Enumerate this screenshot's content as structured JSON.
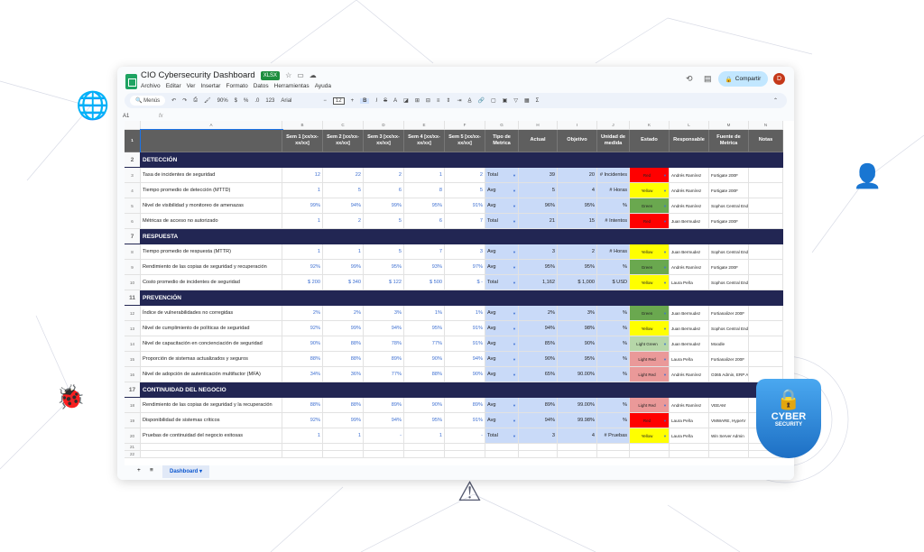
{
  "title": "CIO Cybersecurity Dashboard",
  "badge": "XLSX",
  "menu": [
    "Archivo",
    "Editar",
    "Ver",
    "Insertar",
    "Formato",
    "Datos",
    "Herramientas",
    "Ayuda"
  ],
  "share_label": "Compartir",
  "avatar": "D",
  "toolbar": {
    "search": "Menús",
    "zoom": "90%",
    "font": "Arial",
    "size": "12",
    "items": [
      "$",
      "%",
      ".0",
      "123"
    ]
  },
  "cell_ref": "A1",
  "fx": "fx",
  "columns": [
    "A",
    "B",
    "C",
    "D",
    "E",
    "F",
    "G",
    "H",
    "I",
    "J",
    "K",
    "L",
    "M",
    "N"
  ],
  "headers": [
    "",
    "Sem 1 [xx/xx-xx/xx]",
    "Sem 2 [xx/xx-xx/xx]",
    "Sem 3 [xx/xx-xx/xx]",
    "Sem 4 [xx/xx-xx/xx]",
    "Sem 5 [xx/xx-xx/xx]",
    "Tipo de Metrica",
    "Actual",
    "Objetivo",
    "Unidad de medida",
    "Estado",
    "Responsable",
    "Fuente de Metrica",
    "Notas"
  ],
  "rows": [
    {
      "n": 2,
      "section": "DETECCIÓN"
    },
    {
      "n": 3,
      "metric": "Tasa de incidentes de seguridad",
      "w": [
        "12",
        "22",
        "2",
        "1",
        "2"
      ],
      "tipo": "Total",
      "actual": "39",
      "obj": "20",
      "unit": "# Incidentes",
      "estado": "Red",
      "resp": "Andrés Ramírez",
      "fuente": "Fortigate 200F"
    },
    {
      "n": 4,
      "metric": "Tiempo promedio de detección (MTTD)",
      "w": [
        "1",
        "5",
        "6",
        "8",
        "5"
      ],
      "tipo": "Avg",
      "actual": "5",
      "obj": "4",
      "unit": "# Horas",
      "estado": "Yellow",
      "resp": "Andrés Ramírez",
      "fuente": "Fortigate 200F"
    },
    {
      "n": 5,
      "metric": "Nivel de visibilidad y monitoreo de amenazas",
      "w": [
        "99%",
        "94%",
        "99%",
        "95%",
        "91%"
      ],
      "tipo": "Avg",
      "actual": "96%",
      "obj": "95%",
      "unit": "%",
      "estado": "Green",
      "resp": "Andrés Ramírez",
      "fuente": "Sophos Central Endpoint"
    },
    {
      "n": 6,
      "metric": "Métricas de acceso no autorizado",
      "w": [
        "1",
        "2",
        "5",
        "6",
        "7"
      ],
      "tipo": "Total",
      "actual": "21",
      "obj": "15",
      "unit": "# Intentos",
      "estado": "Red",
      "resp": "Juan Bermudez",
      "fuente": "Fortigate 200F"
    },
    {
      "n": 7,
      "section": "RESPUESTA"
    },
    {
      "n": 8,
      "metric": "Tiempo promedio de respuesta (MTTR)",
      "w": [
        "1",
        "1",
        "5",
        "7",
        "3"
      ],
      "tipo": "Avg",
      "actual": "3",
      "obj": "2",
      "unit": "# Horas",
      "estado": "Yellow",
      "resp": "Juan Bermudez",
      "fuente": "Sophos Central Endpoint"
    },
    {
      "n": 9,
      "metric": "Rendimiento de las copias de seguridad y recuperación",
      "w": [
        "92%",
        "99%",
        "95%",
        "93%",
        "97%"
      ],
      "tipo": "Avg",
      "actual": "95%",
      "obj": "95%",
      "unit": "%",
      "estado": "Green",
      "resp": "Andrés Ramírez",
      "fuente": "Fortigate 200F"
    },
    {
      "n": 10,
      "metric": "Costo promedio de incidentes de seguridad",
      "w": [
        "$ 200",
        "$ 340",
        "$ 122",
        "$ 500",
        "$ -"
      ],
      "tipo": "Total",
      "actual": "1,162",
      "obj": "$ 1,000",
      "unit": "$ USD",
      "estado": "Yellow",
      "resp": "Laura Peña",
      "fuente": "Sophos Central Endpoint"
    },
    {
      "n": 11,
      "section": "PREVENCIÓN"
    },
    {
      "n": 12,
      "metric": "Índice de vulnerabilidades no corregidas",
      "w": [
        "2%",
        "2%",
        "3%",
        "1%",
        "1%"
      ],
      "tipo": "Avg",
      "actual": "2%",
      "obj": "3%",
      "unit": "%",
      "estado": "Green",
      "resp": "Juan Bermudez",
      "fuente": "Fortianalizer 200F"
    },
    {
      "n": 13,
      "metric": "Nivel de cumplimiento de políticas de seguridad",
      "w": [
        "92%",
        "99%",
        "94%",
        "95%",
        "91%"
      ],
      "tipo": "Avg",
      "actual": "94%",
      "obj": "98%",
      "unit": "%",
      "estado": "Yellow",
      "resp": "Juan Bermudez",
      "fuente": "Sophos Central Endpoint"
    },
    {
      "n": 14,
      "metric": "Nivel de capacitación en concienciación de seguridad",
      "w": [
        "90%",
        "88%",
        "78%",
        "77%",
        "91%"
      ],
      "tipo": "Avg",
      "actual": "85%",
      "obj": "90%",
      "unit": "%",
      "estado": "Light Green",
      "resp": "Juan Bermudez",
      "fuente": "Moodle"
    },
    {
      "n": 15,
      "metric": "Proporción de sistemas actualizados y seguros",
      "w": [
        "88%",
        "88%",
        "89%",
        "90%",
        "94%"
      ],
      "tipo": "Avg",
      "actual": "90%",
      "obj": "95%",
      "unit": "%",
      "estado": "Light Red",
      "resp": "Laura Peña",
      "fuente": "Fortianalizer 200F"
    },
    {
      "n": 16,
      "metric": "Nivel de adopción de autenticación multifactor (MFA)",
      "w": [
        "34%",
        "36%",
        "77%",
        "88%",
        "90%"
      ],
      "tipo": "Avg",
      "actual": "65%",
      "obj": "90.00%",
      "unit": "%",
      "estado": "Light Red",
      "resp": "Andrés Ramírez",
      "fuente": "O365 Admin, ERP Admin,"
    },
    {
      "n": 17,
      "section": "CONTINUIDAD DEL NEGOCIO"
    },
    {
      "n": 18,
      "metric": "Rendimiento de las copias de seguridad y la recuperación",
      "w": [
        "88%",
        "88%",
        "89%",
        "90%",
        "89%"
      ],
      "tipo": "Avg",
      "actual": "89%",
      "obj": "99.00%",
      "unit": "%",
      "estado": "Light Red",
      "resp": "Andrés Ramírez",
      "fuente": "VEEAM"
    },
    {
      "n": 19,
      "metric": "Disponibilidad de sistemas críticos",
      "w": [
        "92%",
        "99%",
        "94%",
        "95%",
        "91%"
      ],
      "tipo": "Avg",
      "actual": "94%",
      "obj": "99.98%",
      "unit": "%",
      "estado": "Red",
      "resp": "Laura Peña",
      "fuente": "VMWARE, HyperV"
    },
    {
      "n": 20,
      "metric": "Pruebas de continuidad del negocio exitosas",
      "w": [
        "1",
        "1",
        "-",
        "1",
        "-"
      ],
      "tipo": "Total",
      "actual": "3",
      "obj": "4",
      "unit": "# Pruebas",
      "estado": "Yellow",
      "resp": "Laura Peña",
      "fuente": "Win Server Admin"
    }
  ],
  "estado_colors": {
    "Red": "#ff0000",
    "Yellow": "#ffff00",
    "Green": "#6aa84f",
    "Light Green": "#b6d7a8",
    "Light Red": "#ea9999"
  },
  "sheet_tab": "Dashboard",
  "badge_text": {
    "line1": "CYBER",
    "line2": "SECURITY"
  }
}
